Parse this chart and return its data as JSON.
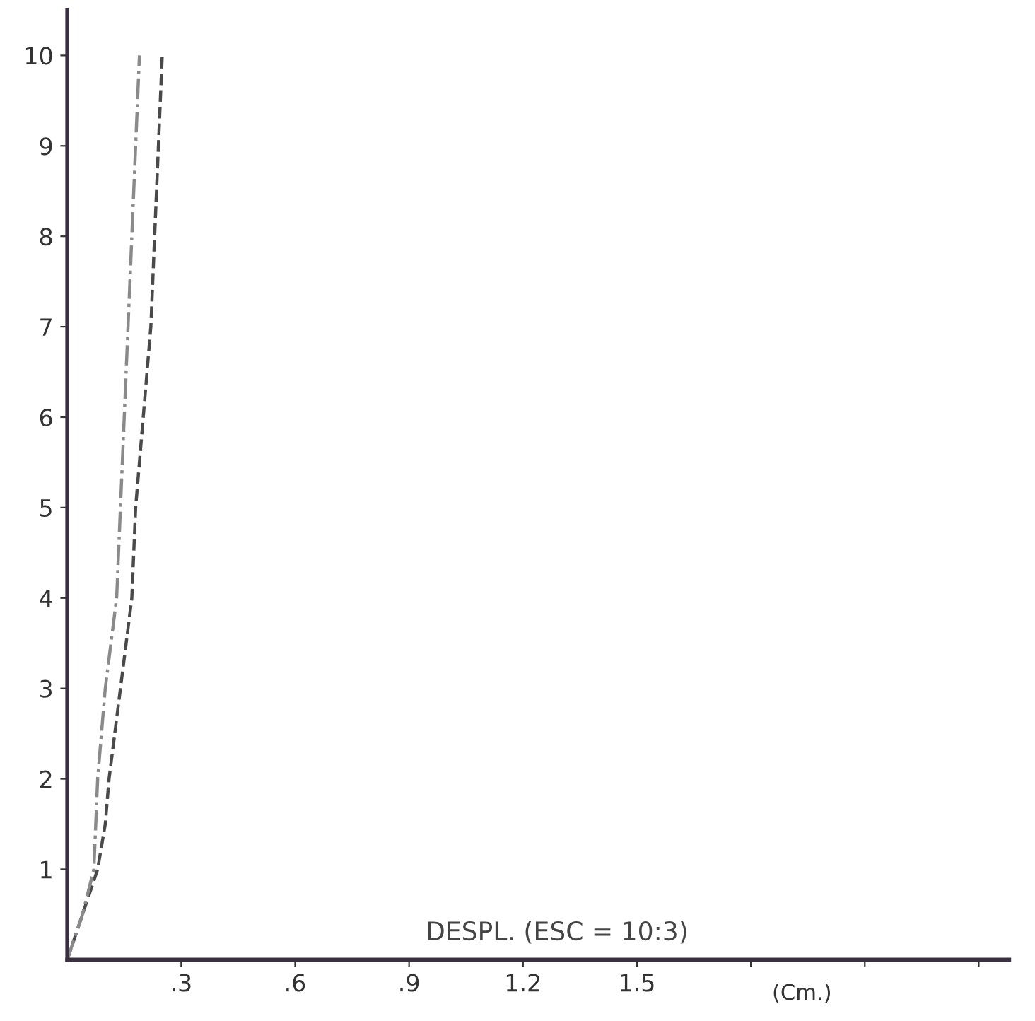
{
  "chart_data": {
    "type": "line",
    "xlabel": "(Cm.)",
    "annotations": [
      "DESPL. (ESC = 10:3)"
    ],
    "xlim": [
      0,
      2.48
    ],
    "ylim": [
      0,
      10.5
    ],
    "xticks": [
      {
        "value": 0.3,
        "label": ".3"
      },
      {
        "value": 0.6,
        "label": ".6"
      },
      {
        "value": 0.9,
        "label": ".9"
      },
      {
        "value": 1.2,
        "label": "1.2"
      },
      {
        "value": 1.5,
        "label": "1.5"
      },
      {
        "value": 1.8,
        "label": null
      },
      {
        "value": 2.1,
        "label": null
      },
      {
        "value": 2.4,
        "label": null
      }
    ],
    "yticks": [
      1,
      2,
      3,
      4,
      5,
      6,
      7,
      8,
      9,
      10
    ],
    "grid": false,
    "marker": "none",
    "series": [
      {
        "color": "#4a4a4a",
        "line_style": "dashed",
        "x": [
          0,
          0.04,
          0.08,
          0.1,
          0.11,
          0.14,
          0.17,
          0.18,
          0.2,
          0.22,
          0.23,
          0.25
        ],
        "values": [
          0,
          0.5,
          1,
          1.5,
          2,
          3,
          4,
          5,
          6,
          7,
          8,
          10
        ]
      },
      {
        "color": "#8a8a8a",
        "line_style": "dashdot",
        "x": [
          0,
          0.04,
          0.07,
          0.08,
          0.1,
          0.13,
          0.14,
          0.15,
          0.16,
          0.17,
          0.19
        ],
        "values": [
          0,
          0.5,
          1,
          2,
          3,
          4,
          5,
          6,
          7,
          8,
          10
        ]
      }
    ]
  }
}
